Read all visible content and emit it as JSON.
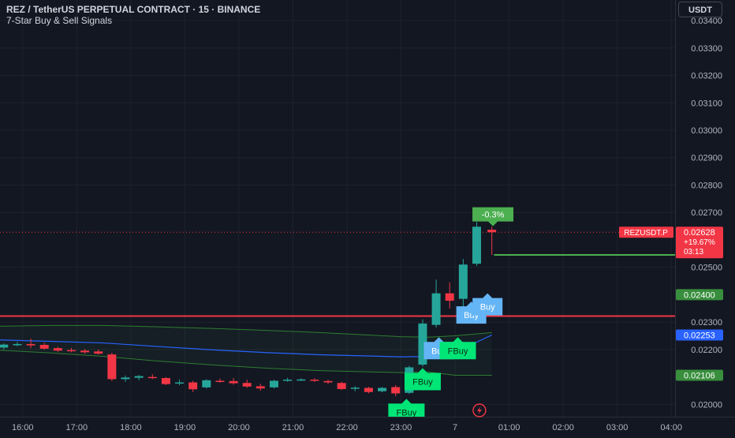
{
  "header": {
    "title": "REZ / TetherUS PERPETUAL CONTRACT · 15 · BINANCE",
    "subtitle": "7-Star Buy & Sell Signals",
    "currency_button": "USDT"
  },
  "colors": {
    "background": "#131722",
    "up": "#26a69a",
    "down": "#f23645",
    "red_level": "#f23645",
    "green_level": "#4caf50",
    "blue_line": "#2962ff",
    "buy_label": "#64b5f6",
    "fbuy_label": "#00e676"
  },
  "chart_data": {
    "type": "candlestick",
    "ylim": [
      0.01955,
      0.03475
    ],
    "y_ticks": [
      "0.03400",
      "0.03300",
      "0.03200",
      "0.03100",
      "0.03000",
      "0.02900",
      "0.02800",
      "0.02700",
      "0.02500",
      "0.02300",
      "0.02200",
      "0.02000"
    ],
    "x_range": [
      15.58,
      28.07
    ],
    "x_ticks": [
      {
        "t": 16,
        "label": "16:00"
      },
      {
        "t": 17,
        "label": "17:00"
      },
      {
        "t": 18,
        "label": "18:00"
      },
      {
        "t": 19,
        "label": "19:00"
      },
      {
        "t": 20,
        "label": "20:00"
      },
      {
        "t": 21,
        "label": "21:00"
      },
      {
        "t": 22,
        "label": "22:00"
      },
      {
        "t": 23,
        "label": "23:00"
      },
      {
        "t": 24,
        "label": "7"
      },
      {
        "t": 25,
        "label": "01:00"
      },
      {
        "t": 26,
        "label": "02:00"
      },
      {
        "t": 27,
        "label": "03:00"
      },
      {
        "t": 28,
        "label": "04:00"
      }
    ],
    "candles": [
      {
        "t": 15.65,
        "o": 0.02207,
        "h": 0.02222,
        "l": 0.022,
        "c": 0.02218
      },
      {
        "t": 15.9,
        "o": 0.02218,
        "h": 0.02228,
        "l": 0.02212,
        "c": 0.0222
      },
      {
        "t": 16.15,
        "o": 0.0222,
        "h": 0.0224,
        "l": 0.02205,
        "c": 0.02215
      },
      {
        "t": 16.4,
        "o": 0.02217,
        "h": 0.02225,
        "l": 0.022,
        "c": 0.02203
      },
      {
        "t": 16.65,
        "o": 0.02205,
        "h": 0.0221,
        "l": 0.02192,
        "c": 0.02196
      },
      {
        "t": 16.9,
        "o": 0.02198,
        "h": 0.02206,
        "l": 0.0219,
        "c": 0.02197
      },
      {
        "t": 17.15,
        "o": 0.02196,
        "h": 0.02202,
        "l": 0.02185,
        "c": 0.0219
      },
      {
        "t": 17.4,
        "o": 0.02193,
        "h": 0.022,
        "l": 0.02182,
        "c": 0.02185
      },
      {
        "t": 17.65,
        "o": 0.02182,
        "h": 0.02188,
        "l": 0.02085,
        "c": 0.02092
      },
      {
        "t": 17.9,
        "o": 0.02092,
        "h": 0.02105,
        "l": 0.02082,
        "c": 0.02098
      },
      {
        "t": 18.15,
        "o": 0.02097,
        "h": 0.02107,
        "l": 0.02088,
        "c": 0.02103
      },
      {
        "t": 18.4,
        "o": 0.021,
        "h": 0.0211,
        "l": 0.02092,
        "c": 0.02096
      },
      {
        "t": 18.65,
        "o": 0.02096,
        "h": 0.02099,
        "l": 0.0207,
        "c": 0.02074
      },
      {
        "t": 18.9,
        "o": 0.02077,
        "h": 0.0209,
        "l": 0.0207,
        "c": 0.0208
      },
      {
        "t": 19.15,
        "o": 0.0208,
        "h": 0.02086,
        "l": 0.02045,
        "c": 0.02055
      },
      {
        "t": 19.4,
        "o": 0.02062,
        "h": 0.02092,
        "l": 0.02058,
        "c": 0.02088
      },
      {
        "t": 19.65,
        "o": 0.02086,
        "h": 0.02094,
        "l": 0.02079,
        "c": 0.02083
      },
      {
        "t": 19.9,
        "o": 0.02085,
        "h": 0.02096,
        "l": 0.02072,
        "c": 0.02077
      },
      {
        "t": 20.15,
        "o": 0.02078,
        "h": 0.0209,
        "l": 0.0206,
        "c": 0.02065
      },
      {
        "t": 20.4,
        "o": 0.02066,
        "h": 0.02075,
        "l": 0.0205,
        "c": 0.02058
      },
      {
        "t": 20.65,
        "o": 0.02062,
        "h": 0.0209,
        "l": 0.02058,
        "c": 0.02086
      },
      {
        "t": 20.9,
        "o": 0.02087,
        "h": 0.02097,
        "l": 0.02083,
        "c": 0.0209
      },
      {
        "t": 21.15,
        "o": 0.02089,
        "h": 0.02095,
        "l": 0.02085,
        "c": 0.02091
      },
      {
        "t": 21.4,
        "o": 0.0209,
        "h": 0.02095,
        "l": 0.02082,
        "c": 0.02086
      },
      {
        "t": 21.65,
        "o": 0.02085,
        "h": 0.0209,
        "l": 0.02074,
        "c": 0.0208
      },
      {
        "t": 21.9,
        "o": 0.02078,
        "h": 0.02082,
        "l": 0.02052,
        "c": 0.02056
      },
      {
        "t": 22.15,
        "o": 0.02058,
        "h": 0.02066,
        "l": 0.02048,
        "c": 0.02061
      },
      {
        "t": 22.4,
        "o": 0.0206,
        "h": 0.02064,
        "l": 0.0204,
        "c": 0.02045
      },
      {
        "t": 22.65,
        "o": 0.02048,
        "h": 0.02064,
        "l": 0.02044,
        "c": 0.0206
      },
      {
        "t": 22.9,
        "o": 0.02063,
        "h": 0.0207,
        "l": 0.0203,
        "c": 0.0204
      },
      {
        "t": 23.15,
        "o": 0.02042,
        "h": 0.0214,
        "l": 0.02038,
        "c": 0.02135
      },
      {
        "t": 23.4,
        "o": 0.02145,
        "h": 0.0231,
        "l": 0.02138,
        "c": 0.02295
      },
      {
        "t": 23.65,
        "o": 0.0229,
        "h": 0.02455,
        "l": 0.0228,
        "c": 0.02405
      },
      {
        "t": 23.9,
        "o": 0.02405,
        "h": 0.02445,
        "l": 0.0235,
        "c": 0.02378
      },
      {
        "t": 24.15,
        "o": 0.02385,
        "h": 0.0253,
        "l": 0.02355,
        "c": 0.0251
      },
      {
        "t": 24.4,
        "o": 0.02513,
        "h": 0.02665,
        "l": 0.02505,
        "c": 0.02648
      },
      {
        "t": 24.68,
        "o": 0.02637,
        "h": 0.02648,
        "l": 0.02545,
        "c": 0.02628
      }
    ],
    "levels": [
      {
        "name": "red",
        "value": 0.02322
      },
      {
        "name": "green",
        "value": 0.024
      },
      {
        "name": "target",
        "value": 0.02545
      }
    ],
    "bands": {
      "t": [
        15.58,
        16.5,
        17.5,
        18.5,
        19.5,
        20.5,
        21.5,
        22.5,
        23.0,
        23.5,
        24.0,
        24.68
      ],
      "upper": [
        0.02285,
        0.02288,
        0.02288,
        0.02283,
        0.02277,
        0.0227,
        0.02262,
        0.02252,
        0.02247,
        0.02245,
        0.0225,
        0.02262
      ],
      "mid": [
        0.02235,
        0.0223,
        0.02224,
        0.02211,
        0.02199,
        0.02189,
        0.02181,
        0.02176,
        0.02173,
        0.02175,
        0.0219,
        0.02253
      ],
      "lower": [
        0.02197,
        0.02188,
        0.02175,
        0.02158,
        0.02144,
        0.02132,
        0.02123,
        0.02118,
        0.02116,
        0.02118,
        0.02106,
        0.02106
      ]
    },
    "signals": [
      {
        "t": 23.1,
        "price": 0.0202,
        "label": "FBuy",
        "kind": "fbuy"
      },
      {
        "t": 23.4,
        "price": 0.02132,
        "label": "FBuy",
        "kind": "fbuy"
      },
      {
        "t": 23.7,
        "price": 0.02245,
        "label": "Buy",
        "kind": "buy"
      },
      {
        "t": 24.05,
        "price": 0.02245,
        "label": "FBuy",
        "kind": "fbuy"
      },
      {
        "t": 24.3,
        "price": 0.02375,
        "label": "Buy",
        "kind": "buy"
      },
      {
        "t": 24.6,
        "price": 0.02405,
        "label": "Buy",
        "kind": "buy"
      }
    ],
    "annotation": {
      "t": 24.7,
      "price": 0.0269,
      "label": "-0.3%"
    },
    "price_tags": {
      "symbol": "REZUSDT.P",
      "last_price": "0.02628",
      "change": "+19.67%",
      "countdown": "03:13",
      "green_tag": "0.02400",
      "blue_tag": "0.02253",
      "green_tag2": "0.02106"
    }
  }
}
